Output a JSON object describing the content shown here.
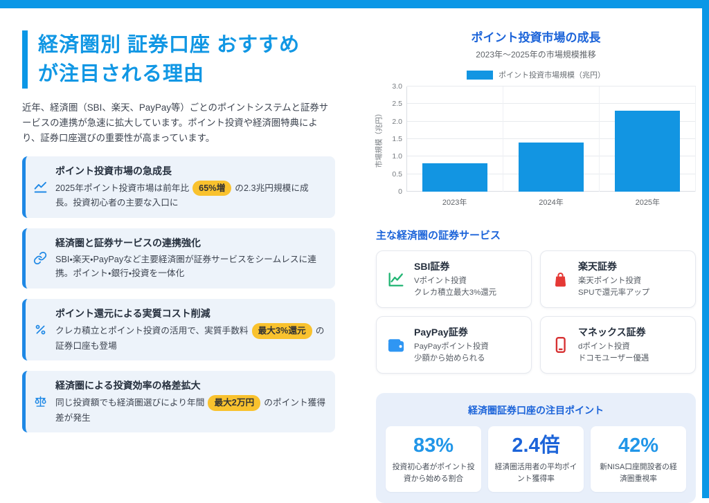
{
  "page": {
    "title_line1": "経済圏別 証券口座 おすすめ",
    "title_line2": "が注目される理由",
    "intro": "近年、経済圏（SBI、楽天、PayPay等）ごとのポイントシステムと証券サービスの連携が急速に拡大しています。ポイント投資や経済圏特典により、証券口座選びの重要性が高まっています。"
  },
  "colors": {
    "frame_blue": "#0b97e6",
    "heading_royal": "#1c64d9",
    "bar_blue": "#1295e2",
    "highlight_yellow": "#f9c22e",
    "card_accent": "#1e88e5"
  },
  "reasons": {
    "items": [
      {
        "icon": "trend-up-icon",
        "title": "ポイント投資市場の急成長",
        "pre": "2025年ポイント投資市場は前年比",
        "highlight": "65%増",
        "post": "の2.3兆円規模に成長。投資初心者の主要な入口に"
      },
      {
        "icon": "link-icon",
        "title": "経済圏と証券サービスの連携強化",
        "pre": "SBI・楽天・PayPayなど主要経済圏が証券サービスをシームレスに連携。ポイント・銀行・投資を一体化",
        "highlight": "",
        "post": ""
      },
      {
        "icon": "percent-icon",
        "title": "ポイント還元による実質コスト削減",
        "pre": "クレカ積立とポイント投資の活用で、実質手数料",
        "highlight": "最大3%還元",
        "post": "の証券口座も登場"
      },
      {
        "icon": "scale-icon",
        "title": "経済圏による投資効率の格差拡大",
        "pre": "同じ投資額でも経済圏選びにより年間",
        "highlight": "最大2万円",
        "post": "のポイント獲得差が発生"
      }
    ]
  },
  "chart": {
    "title": "ポイント投資市場の成長",
    "subtitle": "2023年〜2025年の市場規模推移",
    "legend_label": "ポイント投資市場規模（兆円）"
  },
  "chart_data": {
    "type": "bar",
    "title": "ポイント投資市場の成長",
    "subtitle": "2023年〜2025年の市場規模推移",
    "categories": [
      "2023年",
      "2024年",
      "2025年"
    ],
    "values": [
      0.8,
      1.4,
      2.3
    ],
    "xlabel": "",
    "ylabel": "市場規模（兆円）",
    "ylim": [
      0,
      3.0
    ],
    "yticks": [
      0,
      0.5,
      1.0,
      1.5,
      2.0,
      2.5,
      3.0
    ],
    "grid": true,
    "legend": [
      "ポイント投資市場規模（兆円）"
    ],
    "legend_position": "top",
    "bar_color": "#1295e2"
  },
  "services": {
    "heading": "主な経済圏の証券サービス",
    "items": [
      {
        "icon": "chart-growth-icon",
        "icon_color": "#21b573",
        "name": "SBI証券",
        "line1": "Vポイント投資",
        "line2": "クレカ積立最大3%還元"
      },
      {
        "icon": "shopping-bag-icon",
        "icon_color": "#e53935",
        "name": "楽天証券",
        "line1": "楽天ポイント投資",
        "line2": "SPUで還元率アップ"
      },
      {
        "icon": "wallet-icon",
        "icon_color": "#2f96f3",
        "name": "PayPay証券",
        "line1": "PayPayポイント投資",
        "line2": "少額から始められる"
      },
      {
        "icon": "smartphone-icon",
        "icon_color": "#d63031",
        "name": "マネックス証券",
        "line1": "dポイント投資",
        "line2": "ドコモユーザー優遇"
      }
    ]
  },
  "stats": {
    "heading": "経済圏証券口座の注目ポイント",
    "items": [
      {
        "value": "83%",
        "label": "投資初心者がポイント投資から始める割合",
        "color": "#2196e8"
      },
      {
        "value": "2.4倍",
        "label": "経済圏活用者の平均ポイント獲得率",
        "color": "#1c64d9"
      },
      {
        "value": "42%",
        "label": "新NISA口座開設者の経済圏重視率",
        "color": "#2196e8"
      }
    ]
  }
}
